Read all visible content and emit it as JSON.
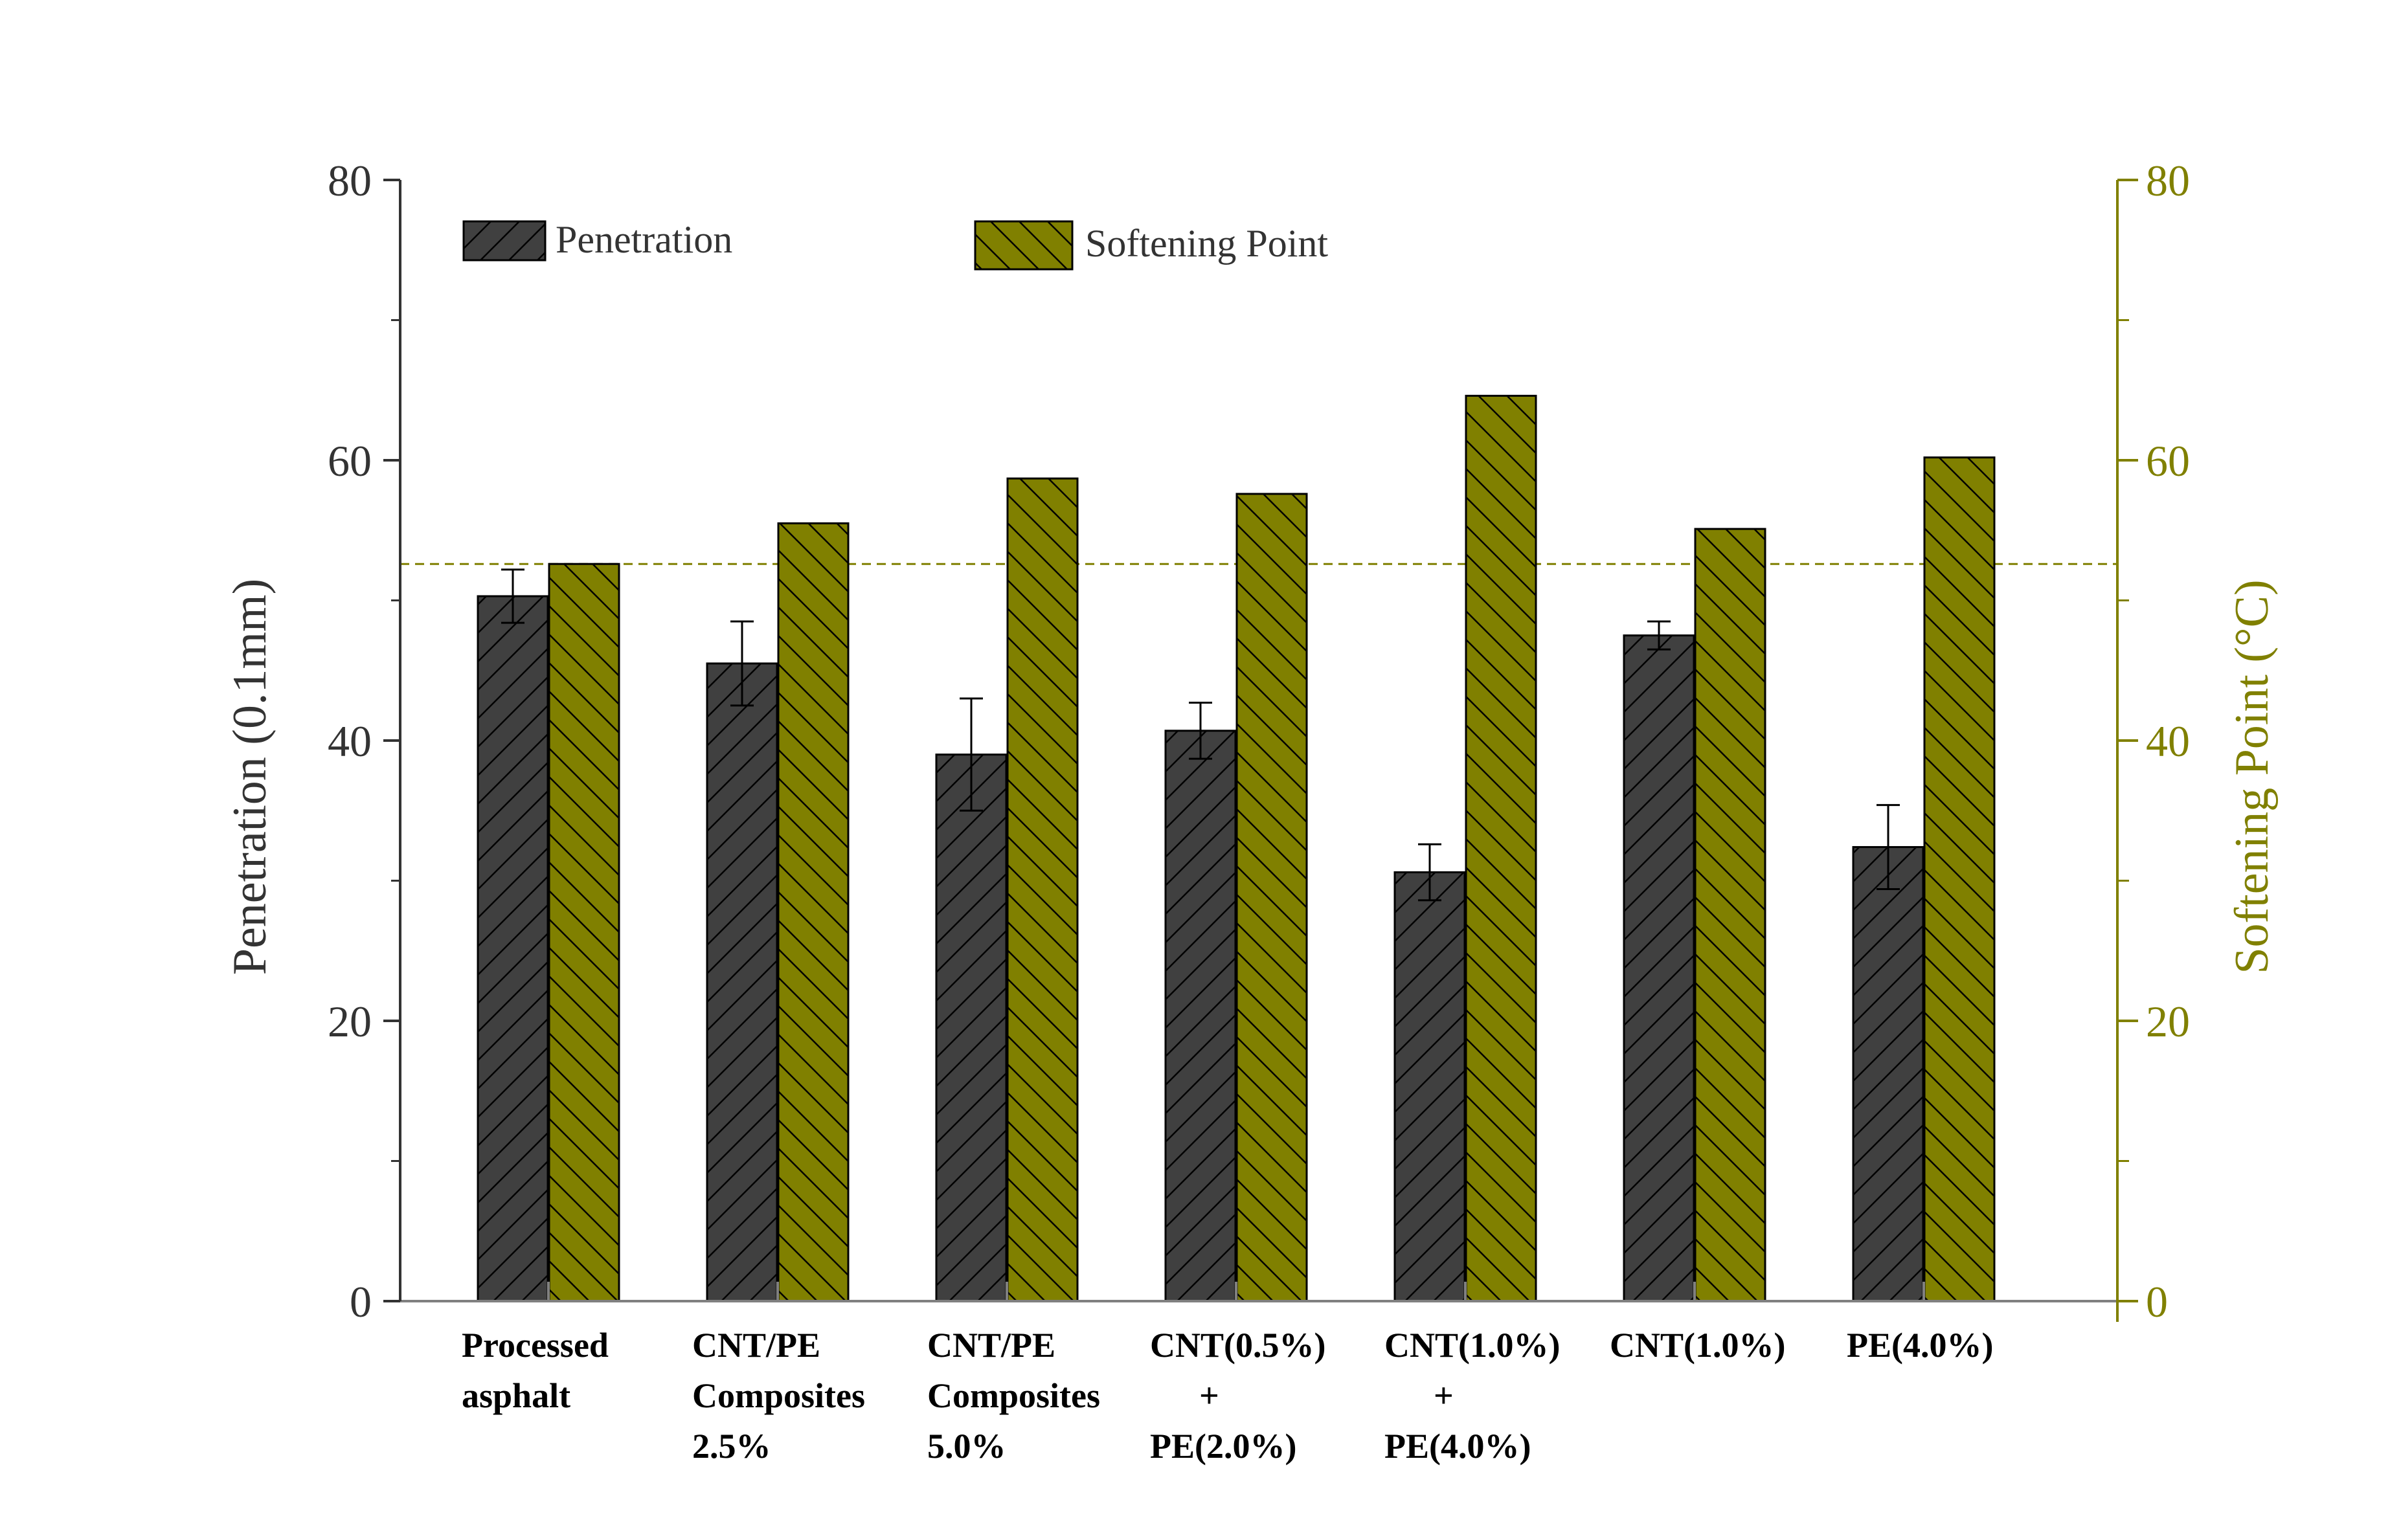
{
  "chart_data": {
    "type": "bar",
    "categories": [
      [
        "Processed",
        "asphalt"
      ],
      [
        "CNT/PE",
        "Composites",
        "2.5%"
      ],
      [
        "CNT/PE",
        "Composites",
        "5.0%"
      ],
      [
        "CNT(0.5%)",
        "+",
        "PE(2.0%)"
      ],
      [
        "CNT(1.0%)",
        "+",
        "PE(4.0%)"
      ],
      [
        "CNT(1.0%)"
      ],
      [
        "PE(4.0%)"
      ]
    ],
    "series": [
      {
        "name": "Penetration",
        "axis": "left",
        "color": "#404040",
        "hatch": "forward",
        "values": [
          50.3,
          45.5,
          39.0,
          40.7,
          30.6,
          47.5,
          32.4
        ],
        "errors": [
          1.9,
          3.0,
          4.0,
          2.0,
          2.0,
          1.0,
          3.0
        ]
      },
      {
        "name": "Softening Point",
        "axis": "right",
        "color": "#808000",
        "hatch": "backward",
        "values": [
          52.6,
          55.5,
          58.7,
          57.6,
          64.6,
          55.1,
          60.2
        ]
      }
    ],
    "ylabel_left": "Penetration (0.1mm)",
    "ylabel_right": "Softening Point (°C)",
    "ylim_left": [
      0,
      80
    ],
    "ylim_right": [
      0,
      80
    ],
    "yticks": [
      "0",
      "20",
      "40",
      "60",
      "80"
    ],
    "reference_line": {
      "value": 52.6,
      "style": "dashed",
      "color": "#808000"
    },
    "legend": {
      "placement": "top"
    },
    "grid": false
  }
}
